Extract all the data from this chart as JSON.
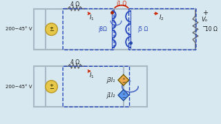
{
  "bg_color": "#d8e8f0",
  "top_circuit": {
    "vs_label": "200−45° V",
    "r1_label": "4 Ω",
    "r2_label": "j8Ω",
    "r3_label": "j5 Ω",
    "r4_label": "10 Ω",
    "mutual_label": "j1 Ω",
    "I1_label": "I₁",
    "I2_label": "I₂",
    "Vo_plus": "+",
    "Vo_minus": "−",
    "Vo_label": "Vₒ"
  },
  "bottom_circuit": {
    "vs_label": "200−45° V",
    "r1_label": "4 Ω",
    "dep1_label": "j3I₁",
    "dep2_label": "j1I₂",
    "I1_label": "I₁"
  },
  "wire_color": "#a8b8c4",
  "text_color": "#1a1a1a",
  "arrow_color": "#cc2200",
  "blue_color": "#2244bb",
  "mutual_color": "#cc2200",
  "inductor_color": "#2244bb",
  "resistor_color": "#666666",
  "source_fill": "#e8c84a",
  "source_edge": "#b8982a",
  "dep1_fill": "#f0a030",
  "dep2_fill": "#4488ee"
}
